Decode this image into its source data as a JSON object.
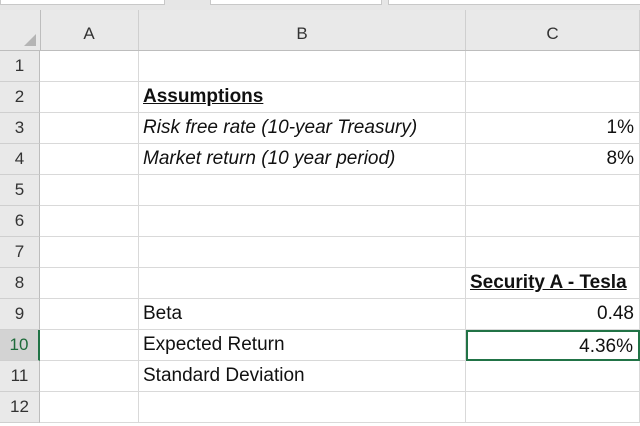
{
  "columns": [
    "A",
    "B",
    "C"
  ],
  "rows": [
    "1",
    "2",
    "3",
    "4",
    "5",
    "6",
    "7",
    "8",
    "9",
    "10",
    "11",
    "12"
  ],
  "cells": {
    "B2": "Assumptions",
    "B3": "Risk free rate (10-year Treasury)",
    "C3": "1%",
    "B4": "Market return (10 year period)",
    "C4": "8%",
    "C8": "Security A - Tesla",
    "B9": "Beta",
    "C9": "0.48",
    "B10": "Expected Return",
    "C10": "4.36%",
    "B11": "Standard Deviation"
  },
  "active_cell": "C10",
  "colors": {
    "accent": "#217346",
    "header_bg": "#e9e9e9",
    "grid": "#d9d9d9"
  }
}
